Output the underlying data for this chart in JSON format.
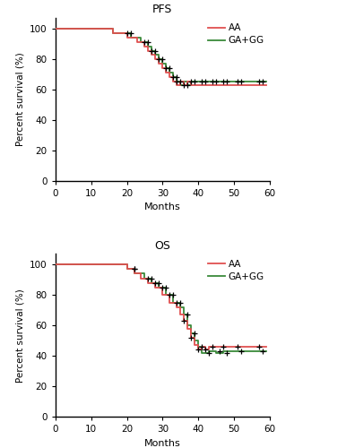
{
  "pfs_title": "PFS",
  "os_title": "OS",
  "xlabel": "Months",
  "ylabel": "Percent survival (%)",
  "xlim": [
    0,
    60
  ],
  "ylim": [
    0,
    107
  ],
  "yticks": [
    0,
    20,
    40,
    60,
    80,
    100
  ],
  "xticks": [
    0,
    10,
    20,
    30,
    40,
    50,
    60
  ],
  "color_AA": "#e05050",
  "color_GA": "#3a8a3a",
  "legend_AA": "AA",
  "legend_GA": "GA+GG",
  "linewidth": 1.3,
  "bg_color": "#ffffff",
  "pfs_AA_x": [
    0,
    16,
    16,
    20,
    20,
    23,
    23,
    25,
    25,
    26,
    26,
    27,
    27,
    28,
    28,
    29,
    29,
    30,
    30,
    31,
    31,
    32,
    32,
    33,
    33,
    34,
    34,
    35,
    35,
    36,
    36,
    37,
    37,
    38,
    38,
    59
  ],
  "pfs_AA_y": [
    100,
    100,
    97,
    97,
    94,
    94,
    91,
    91,
    88,
    88,
    85,
    85,
    83,
    83,
    80,
    80,
    77,
    77,
    74,
    74,
    71,
    71,
    68,
    68,
    65,
    65,
    63,
    63,
    65,
    65,
    63,
    63,
    65,
    65,
    63,
    63
  ],
  "pfs_GA_x": [
    0,
    16,
    16,
    21,
    21,
    24,
    24,
    26,
    26,
    27,
    27,
    28,
    28,
    29,
    29,
    30,
    30,
    31,
    31,
    32,
    32,
    33,
    33,
    34,
    34,
    35,
    35,
    36,
    36,
    37,
    37,
    38,
    38,
    59
  ],
  "pfs_GA_y": [
    100,
    100,
    97,
    97,
    94,
    94,
    91,
    91,
    88,
    88,
    85,
    85,
    83,
    83,
    80,
    80,
    77,
    77,
    74,
    74,
    71,
    71,
    68,
    68,
    65,
    65,
    63,
    63,
    65,
    65,
    63,
    63,
    65,
    65
  ],
  "pfs_AA_censor_x": [
    20,
    25,
    27,
    29,
    31,
    33,
    34,
    36,
    38,
    41,
    44,
    47,
    51,
    57
  ],
  "pfs_AA_censor_y": [
    97,
    91,
    85,
    80,
    74,
    68,
    65,
    63,
    65,
    65,
    65,
    65,
    65,
    65
  ],
  "pfs_GA_censor_x": [
    21,
    26,
    28,
    30,
    32,
    34,
    35,
    37,
    39,
    42,
    45,
    48,
    52,
    58
  ],
  "pfs_GA_censor_y": [
    97,
    91,
    85,
    80,
    74,
    68,
    65,
    63,
    65,
    65,
    65,
    65,
    65,
    65
  ],
  "os_AA_x": [
    0,
    20,
    20,
    22,
    22,
    24,
    24,
    26,
    26,
    28,
    28,
    30,
    30,
    32,
    32,
    34,
    34,
    35,
    35,
    36,
    36,
    37,
    37,
    38,
    38,
    39,
    39,
    40,
    40,
    41,
    41,
    42,
    42,
    43,
    43,
    59
  ],
  "os_AA_y": [
    100,
    100,
    97,
    97,
    94,
    94,
    91,
    91,
    88,
    88,
    85,
    85,
    80,
    80,
    75,
    75,
    72,
    72,
    67,
    67,
    63,
    63,
    58,
    58,
    52,
    52,
    47,
    47,
    44,
    44,
    46,
    46,
    44,
    44,
    46,
    46
  ],
  "os_GA_x": [
    0,
    20,
    20,
    22,
    22,
    25,
    25,
    27,
    27,
    29,
    29,
    31,
    31,
    33,
    33,
    35,
    35,
    36,
    36,
    37,
    37,
    38,
    38,
    39,
    39,
    40,
    40,
    41,
    41,
    43,
    43,
    45,
    45,
    47,
    47,
    59
  ],
  "os_GA_y": [
    100,
    100,
    97,
    97,
    94,
    94,
    91,
    91,
    88,
    88,
    85,
    85,
    80,
    80,
    75,
    75,
    72,
    72,
    67,
    67,
    60,
    60,
    55,
    55,
    50,
    50,
    46,
    46,
    42,
    42,
    43,
    43,
    42,
    42,
    43,
    43
  ],
  "os_AA_censor_x": [
    22,
    26,
    28,
    30,
    32,
    34,
    36,
    38,
    40,
    42,
    44,
    47,
    51,
    57
  ],
  "os_AA_censor_y": [
    97,
    91,
    88,
    85,
    80,
    75,
    63,
    52,
    44,
    44,
    46,
    46,
    46,
    46
  ],
  "os_GA_censor_x": [
    22,
    27,
    29,
    31,
    33,
    35,
    37,
    39,
    41,
    43,
    46,
    48,
    52,
    58
  ],
  "os_GA_censor_y": [
    97,
    91,
    88,
    85,
    80,
    75,
    67,
    55,
    46,
    42,
    43,
    42,
    43,
    43
  ]
}
